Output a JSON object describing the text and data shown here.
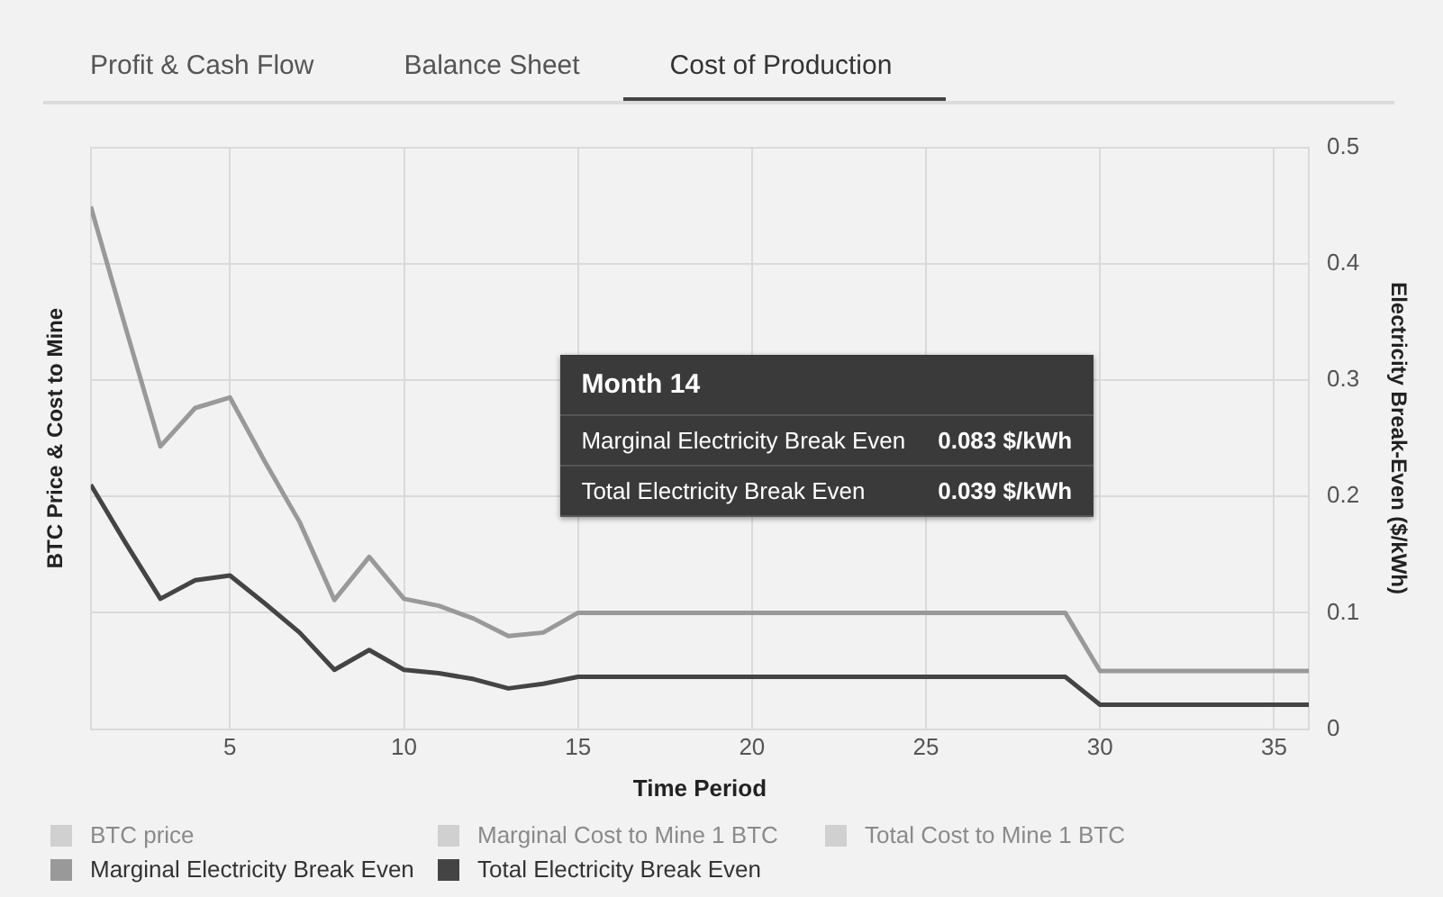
{
  "chart_data": {
    "type": "line",
    "xlabel": "Time Period",
    "ylabel": "BTC Price & Cost to Mine",
    "y2label": "Electricity Break-Even ($/kWh)",
    "x": [
      1,
      2,
      3,
      4,
      5,
      6,
      7,
      8,
      9,
      10,
      11,
      12,
      13,
      14,
      15,
      16,
      17,
      18,
      19,
      20,
      21,
      22,
      23,
      24,
      25,
      26,
      27,
      28,
      29,
      30,
      31,
      32,
      33,
      34,
      35,
      36
    ],
    "xlim": [
      1,
      36
    ],
    "xticks": [
      5,
      10,
      15,
      20,
      25,
      30,
      35
    ],
    "y2lim": [
      0,
      0.5
    ],
    "y2ticks": [
      0,
      0.1,
      0.2,
      0.3,
      0.4,
      0.5
    ],
    "grid": true,
    "legend": "bottom",
    "marker": "none",
    "line_style": "solid",
    "series": [
      {
        "name": "BTC price",
        "color": "#d0d0d0",
        "values": [
          null,
          null,
          null,
          null,
          null,
          null,
          null,
          null,
          null,
          null,
          null,
          null,
          null,
          null,
          null,
          null,
          null,
          null,
          null,
          null,
          null,
          null,
          null,
          null,
          null,
          null,
          null,
          null,
          null,
          null,
          null,
          null,
          null,
          null,
          null,
          null
        ]
      },
      {
        "name": "Marginal Cost to Mine 1 BTC",
        "color": "#d0d0d0",
        "values": [
          null,
          null,
          null,
          null,
          null,
          null,
          null,
          null,
          null,
          null,
          null,
          null,
          null,
          null,
          null,
          null,
          null,
          null,
          null,
          null,
          null,
          null,
          null,
          null,
          null,
          null,
          null,
          null,
          null,
          null,
          null,
          null,
          null,
          null,
          null,
          null
        ]
      },
      {
        "name": "Total Cost to Mine 1 BTC",
        "color": "#d0d0d0",
        "values": [
          null,
          null,
          null,
          null,
          null,
          null,
          null,
          null,
          null,
          null,
          null,
          null,
          null,
          null,
          null,
          null,
          null,
          null,
          null,
          null,
          null,
          null,
          null,
          null,
          null,
          null,
          null,
          null,
          null,
          null,
          null,
          null,
          null,
          null,
          null,
          null
        ]
      },
      {
        "name": "Marginal Electricity Break Even",
        "color": "#999999",
        "axis": "y2",
        "values": [
          0.449,
          0.345,
          0.243,
          0.276,
          0.285,
          0.23,
          0.178,
          0.111,
          0.148,
          0.112,
          0.106,
          0.095,
          0.08,
          0.083,
          0.1,
          0.1,
          0.1,
          0.1,
          0.1,
          0.1,
          0.1,
          0.1,
          0.1,
          0.1,
          0.1,
          0.1,
          0.1,
          0.1,
          0.1,
          0.05,
          0.05,
          0.05,
          0.05,
          0.05,
          0.05,
          0.05
        ]
      },
      {
        "name": "Total Electricity Break Even",
        "color": "#444444",
        "axis": "y2",
        "values": [
          0.21,
          0.16,
          0.112,
          0.128,
          0.132,
          0.108,
          0.083,
          0.051,
          0.068,
          0.051,
          0.048,
          0.043,
          0.035,
          0.039,
          0.045,
          0.045,
          0.045,
          0.045,
          0.045,
          0.045,
          0.045,
          0.045,
          0.045,
          0.045,
          0.045,
          0.045,
          0.045,
          0.045,
          0.045,
          0.021,
          0.021,
          0.021,
          0.021,
          0.021,
          0.021,
          0.021
        ]
      }
    ],
    "annotations": [
      "Profit & Cash Flow",
      "Balance Sheet",
      "Cost of Production",
      "Month 14",
      "0.083 $/kWh",
      "0.039 $/kWh"
    ]
  }
}
